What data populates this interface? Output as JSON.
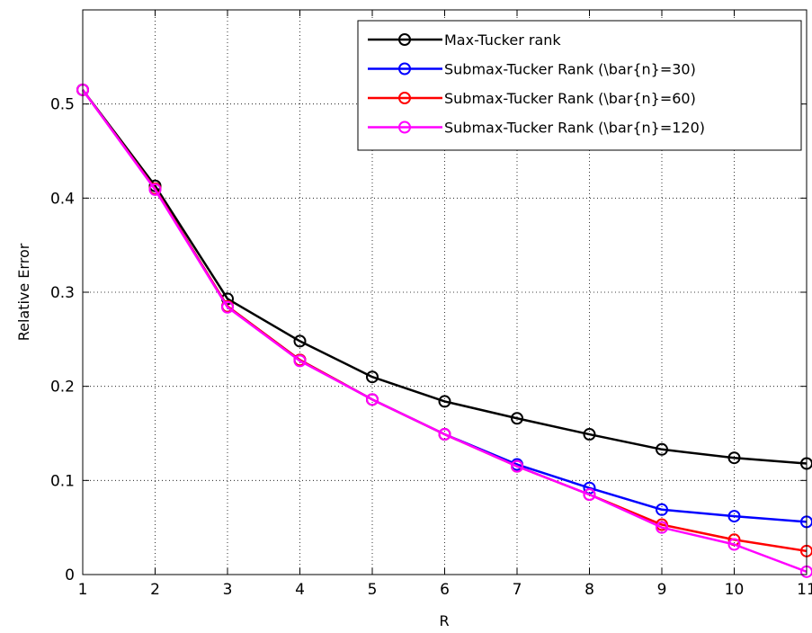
{
  "chart_data": {
    "type": "line",
    "xlabel": "R",
    "ylabel": "Relative Error",
    "xlim": [
      1,
      11
    ],
    "ylim": [
      0,
      0.6
    ],
    "x": [
      1,
      2,
      3,
      4,
      5,
      6,
      7,
      8,
      9,
      10,
      11
    ],
    "x_tick_labels": [
      "1",
      "2",
      "3",
      "4",
      "5",
      "6",
      "7",
      "8",
      "9",
      "10",
      "11"
    ],
    "y_ticks": [
      0,
      0.1,
      0.2,
      0.3,
      0.4,
      0.5
    ],
    "y_tick_labels": [
      "0",
      "0.1",
      "0.2",
      "0.3",
      "0.4",
      "0.5"
    ],
    "grid": true,
    "legend_position": "top-right",
    "series": [
      {
        "name": "Max-Tucker rank",
        "color": "#000000",
        "values": [
          0.515,
          0.413,
          0.293,
          0.248,
          0.21,
          0.184,
          0.166,
          0.149,
          0.133,
          0.124,
          0.118
        ]
      },
      {
        "name": "Submax-Tucker Rank (\\bar{n}=30)",
        "color": "#0000ff",
        "values": [
          0.515,
          0.41,
          0.285,
          0.228,
          0.186,
          0.149,
          0.117,
          0.092,
          0.069,
          0.062,
          0.056
        ]
      },
      {
        "name": "Submax-Tucker Rank (\\bar{n}=60)",
        "color": "#ff0000",
        "values": [
          0.515,
          0.41,
          0.285,
          0.228,
          0.186,
          0.149,
          0.115,
          0.085,
          0.053,
          0.037,
          0.025
        ]
      },
      {
        "name": "Submax-Tucker Rank (\\bar{n}=120)",
        "color": "#ff00ff",
        "values": [
          0.515,
          0.409,
          0.284,
          0.227,
          0.186,
          0.149,
          0.115,
          0.085,
          0.05,
          0.032,
          0.003
        ]
      }
    ]
  }
}
